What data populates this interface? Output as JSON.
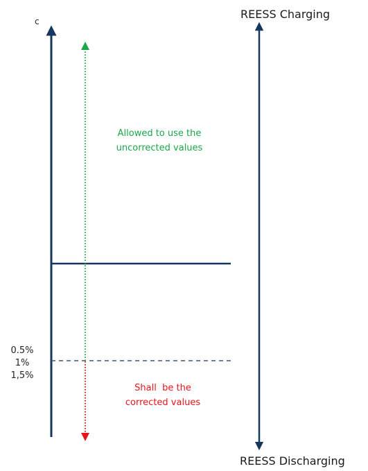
{
  "axis_label": "c",
  "reess_charging": "REESS Charging",
  "reess_discharging": "REESS Discharging",
  "upper_region_text": [
    "Allowed to use the",
    "uncorrected values"
  ],
  "lower_region_text": [
    "Shall  be the",
    "corrected values"
  ],
  "threshold_labels": [
    "0.5%",
    "1%",
    "1,5%"
  ],
  "colors": {
    "axis": "#17365d",
    "green": "#1aa64a",
    "red": "#e8141c"
  }
}
